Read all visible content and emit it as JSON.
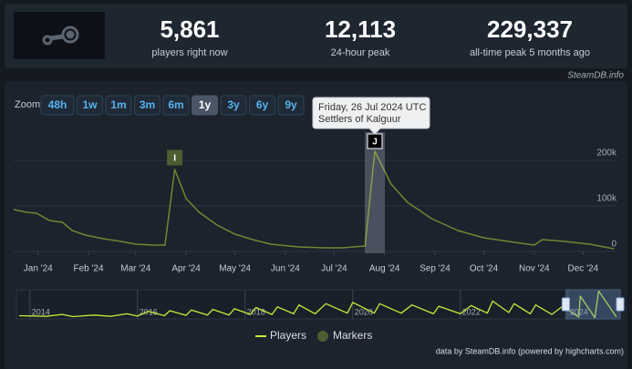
{
  "header": {
    "stats": [
      {
        "value": "5,861",
        "label": "players right now"
      },
      {
        "value": "12,113",
        "label": "24-hour peak"
      },
      {
        "value": "229,337",
        "label": "all-time peak 5 months ago"
      }
    ],
    "source": "SteamDB.info"
  },
  "zoom": {
    "label": "Zoom",
    "buttons": [
      "48h",
      "1w",
      "1m",
      "3m",
      "6m",
      "1y",
      "3y",
      "6y",
      "9y"
    ],
    "selected": "1y"
  },
  "chart_data": [
    {
      "type": "line",
      "x": [
        "2023-12-17",
        "2023-12-25",
        "2023-12-31",
        "2024-01-08",
        "2024-01-16",
        "2024-01-22",
        "2024-01-30",
        "2024-02-10",
        "2024-02-21",
        "2024-03-01",
        "2024-03-12",
        "2024-03-19",
        "2024-03-25",
        "2024-04-01",
        "2024-04-09",
        "2024-04-20",
        "2024-05-01",
        "2024-05-12",
        "2024-05-23",
        "2024-06-09",
        "2024-06-25",
        "2024-07-06",
        "2024-07-20",
        "2024-07-26",
        "2024-08-05",
        "2024-08-15",
        "2024-08-30",
        "2024-09-15",
        "2024-10-01",
        "2024-10-20",
        "2024-11-01",
        "2024-11-06",
        "2024-11-20",
        "2024-12-05",
        "2024-12-20"
      ],
      "series": [
        {
          "name": "Players",
          "color": "#c4ec3a",
          "values": [
            92000,
            86000,
            84000,
            68000,
            64000,
            46000,
            36000,
            28000,
            22000,
            16000,
            14000,
            14000,
            180000,
            116000,
            86000,
            58000,
            38000,
            26000,
            16000,
            10000,
            8000,
            8000,
            12000,
            220000,
            148000,
            108000,
            72000,
            46000,
            30000,
            20000,
            14000,
            26000,
            22000,
            16000,
            6000
          ]
        }
      ],
      "markers_name": "Markers",
      "markers_color": "#4e5c31",
      "markers": [
        {
          "x": "2024-03-25",
          "label": "I"
        },
        {
          "x": "2024-07-26",
          "label": "J"
        }
      ],
      "tooltip": {
        "date": "Friday, 26 Jul 2024 UTC",
        "event": "Settlers of Kalguur"
      },
      "xlim": [
        "2023-12-17",
        "2024-12-21"
      ],
      "xticks": [
        {
          "value": "2024-01-01",
          "label": "Jan '24"
        },
        {
          "value": "2024-02-01",
          "label": "Feb '24"
        },
        {
          "value": "2024-03-01",
          "label": "Mar '24"
        },
        {
          "value": "2024-04-01",
          "label": "Apr '24"
        },
        {
          "value": "2024-05-01",
          "label": "May '24"
        },
        {
          "value": "2024-06-01",
          "label": "Jun '24"
        },
        {
          "value": "2024-07-01",
          "label": "Jul '24"
        },
        {
          "value": "2024-08-01",
          "label": "Aug '24"
        },
        {
          "value": "2024-09-01",
          "label": "Sep '24"
        },
        {
          "value": "2024-10-01",
          "label": "Oct '24"
        },
        {
          "value": "2024-11-01",
          "label": "Nov '24"
        },
        {
          "value": "2024-12-01",
          "label": "Dec '24"
        }
      ],
      "ylim": [
        0,
        270000
      ],
      "yticks": [
        0,
        {
          "value": 100000,
          "label": "100k"
        },
        {
          "value": 200000,
          "label": "200k"
        }
      ],
      "grid": true
    },
    {
      "type": "line",
      "x": [
        2013.8,
        2014.3,
        2014.6,
        2014.8,
        2015.2,
        2015.5,
        2015.8,
        2016.0,
        2016.2,
        2016.5,
        2016.6,
        2016.9,
        2017.0,
        2017.3,
        2017.4,
        2017.7,
        2017.8,
        2018.1,
        2018.2,
        2018.5,
        2018.6,
        2018.9,
        2019.0,
        2019.3,
        2019.5,
        2019.9,
        2020.0,
        2020.4,
        2020.5,
        2020.9,
        2021.1,
        2021.5,
        2021.6,
        2022.0,
        2022.2,
        2022.5,
        2022.6,
        2022.9,
        2023.0,
        2023.3,
        2023.4,
        2023.7,
        2023.9,
        2024.2,
        2024.23,
        2024.5,
        2024.57,
        2024.9
      ],
      "series": [
        {
          "name": "Players",
          "color": "#c4ec3a",
          "values": [
            25000,
            20000,
            35000,
            18000,
            30000,
            20000,
            40000,
            22000,
            60000,
            25000,
            65000,
            28000,
            70000,
            30000,
            75000,
            30000,
            80000,
            35000,
            90000,
            35000,
            95000,
            40000,
            110000,
            40000,
            120000,
            45000,
            130000,
            45000,
            120000,
            45000,
            110000,
            40000,
            100000,
            40000,
            105000,
            45000,
            140000,
            50000,
            120000,
            40000,
            110000,
            35000,
            100000,
            15000,
            180000,
            10000,
            220000,
            15000
          ]
        }
      ],
      "xlim": [
        2013.75,
        2024.97
      ],
      "xticks": [
        2014,
        2016,
        2018,
        2020,
        2022,
        2024
      ],
      "ylim": [
        0,
        230000
      ],
      "selected_range": [
        2023.96,
        2024.97
      ]
    }
  ],
  "credits": "data by SteamDB.info (powered by highcharts.com)"
}
